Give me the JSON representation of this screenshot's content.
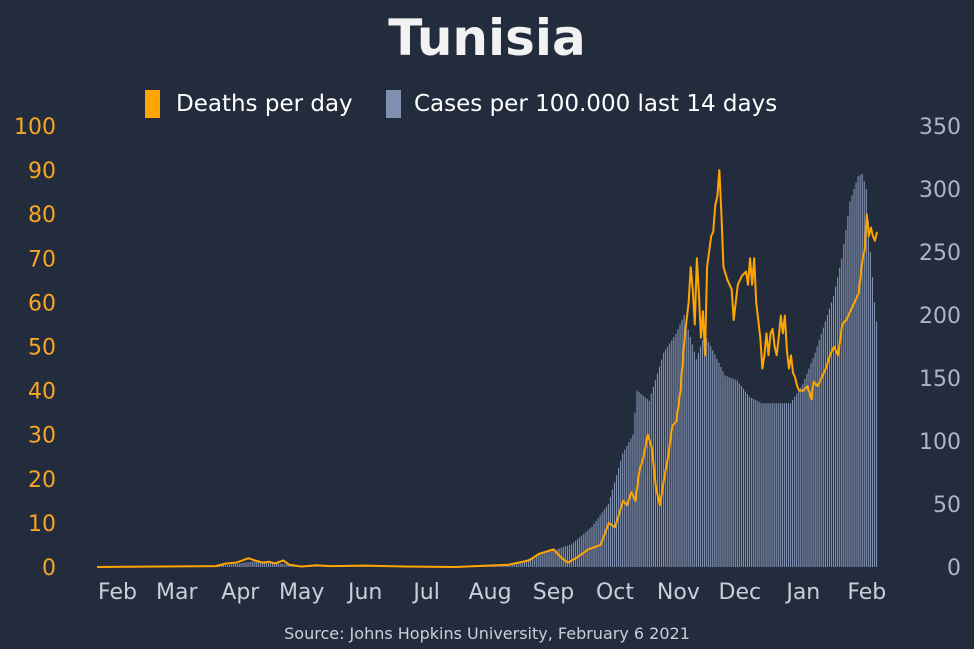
{
  "chart_data": {
    "type": "bar+line",
    "title": "Tunisia",
    "source": "Source: Johns Hopkins University, February 6 2021",
    "legend": [
      {
        "label": "Deaths per day",
        "color": "#ffa500",
        "kind": "line"
      },
      {
        "label": "Cases per 100.000 last 14 days",
        "color": "#8090b0",
        "kind": "bar"
      }
    ],
    "x_tick_labels": [
      "Feb",
      "Mar",
      "Apr",
      "May",
      "Jun",
      "Jul",
      "Aug",
      "Sep",
      "Oct",
      "Nov",
      "Dec",
      "Jan",
      "Feb"
    ],
    "y_left": {
      "min": 0,
      "max": 100,
      "ticks": [
        0,
        10,
        20,
        30,
        40,
        50,
        60,
        70,
        80,
        90,
        100
      ]
    },
    "y_right": {
      "min": 0,
      "max": 350,
      "ticks": [
        0,
        50,
        100,
        150,
        200,
        250,
        300,
        350
      ]
    },
    "series": [
      {
        "name": "Cases per 100.000 last 14 days",
        "axis": "right",
        "points": [
          [
            "2020-01-22",
            0
          ],
          [
            "2020-03-15",
            0.2
          ],
          [
            "2020-03-28",
            2
          ],
          [
            "2020-04-08",
            4.5
          ],
          [
            "2020-04-18",
            3.5
          ],
          [
            "2020-04-28",
            1
          ],
          [
            "2020-05-10",
            0.2
          ],
          [
            "2020-06-15",
            0.1
          ],
          [
            "2020-07-15",
            0.5
          ],
          [
            "2020-08-01",
            1
          ],
          [
            "2020-08-15",
            3
          ],
          [
            "2020-08-25",
            10
          ],
          [
            "2020-09-01",
            13
          ],
          [
            "2020-09-10",
            18
          ],
          [
            "2020-09-20",
            32
          ],
          [
            "2020-09-28",
            50
          ],
          [
            "2020-10-05",
            90
          ],
          [
            "2020-10-10",
            105
          ],
          [
            "2020-10-12",
            140
          ],
          [
            "2020-10-18",
            132
          ],
          [
            "2020-10-25",
            170
          ],
          [
            "2020-10-31",
            185
          ],
          [
            "2020-11-04",
            200
          ],
          [
            "2020-11-10",
            165
          ],
          [
            "2020-11-14",
            185
          ],
          [
            "2020-11-18",
            172
          ],
          [
            "2020-11-24",
            152
          ],
          [
            "2020-11-30",
            148
          ],
          [
            "2020-12-06",
            135
          ],
          [
            "2020-12-12",
            130
          ],
          [
            "2020-12-20",
            130
          ],
          [
            "2020-12-26",
            130
          ],
          [
            "2021-01-01",
            145
          ],
          [
            "2021-01-07",
            170
          ],
          [
            "2021-01-12",
            195
          ],
          [
            "2021-01-16",
            215
          ],
          [
            "2021-01-20",
            245
          ],
          [
            "2021-01-24",
            290
          ],
          [
            "2021-01-28",
            310
          ],
          [
            "2021-01-30",
            312
          ],
          [
            "2021-02-01",
            300
          ],
          [
            "2021-02-03",
            250
          ],
          [
            "2021-02-05",
            210
          ],
          [
            "2021-02-06",
            195
          ]
        ]
      },
      {
        "name": "Deaths per day",
        "axis": "left",
        "points": [
          [
            "2020-01-22",
            0
          ],
          [
            "2020-03-20",
            0.2
          ],
          [
            "2020-03-25",
            0.8
          ],
          [
            "2020-03-30",
            1
          ],
          [
            "2020-04-02",
            1.5
          ],
          [
            "2020-04-05",
            2
          ],
          [
            "2020-04-08",
            1.5
          ],
          [
            "2020-04-12",
            1
          ],
          [
            "2020-04-15",
            1.2
          ],
          [
            "2020-04-18",
            0.8
          ],
          [
            "2020-04-22",
            1.5
          ],
          [
            "2020-04-25",
            0.5
          ],
          [
            "2020-05-01",
            0.1
          ],
          [
            "2020-05-08",
            0.4
          ],
          [
            "2020-05-15",
            0.2
          ],
          [
            "2020-06-01",
            0.3
          ],
          [
            "2020-06-20",
            0.1
          ],
          [
            "2020-07-15",
            0
          ],
          [
            "2020-08-10",
            0.5
          ],
          [
            "2020-08-20",
            1.5
          ],
          [
            "2020-08-25",
            3
          ],
          [
            "2020-09-01",
            4
          ],
          [
            "2020-09-05",
            2
          ],
          [
            "2020-09-08",
            1
          ],
          [
            "2020-09-12",
            2
          ],
          [
            "2020-09-18",
            4
          ],
          [
            "2020-09-24",
            5
          ],
          [
            "2020-09-28",
            10
          ],
          [
            "2020-10-01",
            9
          ],
          [
            "2020-10-03",
            12
          ],
          [
            "2020-10-05",
            15
          ],
          [
            "2020-10-07",
            14
          ],
          [
            "2020-10-09",
            17
          ],
          [
            "2020-10-11",
            15
          ],
          [
            "2020-10-13",
            22
          ],
          [
            "2020-10-15",
            25
          ],
          [
            "2020-10-17",
            30
          ],
          [
            "2020-10-19",
            27
          ],
          [
            "2020-10-21",
            18
          ],
          [
            "2020-10-23",
            14
          ],
          [
            "2020-10-25",
            20
          ],
          [
            "2020-10-27",
            25
          ],
          [
            "2020-10-29",
            32
          ],
          [
            "2020-10-31",
            33
          ],
          [
            "2020-11-02",
            40
          ],
          [
            "2020-11-04",
            52
          ],
          [
            "2020-11-06",
            60
          ],
          [
            "2020-11-07",
            68
          ],
          [
            "2020-11-08",
            63
          ],
          [
            "2020-11-09",
            55
          ],
          [
            "2020-11-10",
            70
          ],
          [
            "2020-11-11",
            62
          ],
          [
            "2020-11-12",
            52
          ],
          [
            "2020-11-13",
            58
          ],
          [
            "2020-11-14",
            48
          ],
          [
            "2020-11-15",
            68
          ],
          [
            "2020-11-17",
            75
          ],
          [
            "2020-11-18",
            76
          ],
          [
            "2020-11-19",
            82
          ],
          [
            "2020-11-20",
            84
          ],
          [
            "2020-11-21",
            90
          ],
          [
            "2020-11-22",
            80
          ],
          [
            "2020-11-23",
            68
          ],
          [
            "2020-11-25",
            65
          ],
          [
            "2020-11-27",
            63
          ],
          [
            "2020-11-28",
            56
          ],
          [
            "2020-11-30",
            64
          ],
          [
            "2020-12-02",
            66
          ],
          [
            "2020-12-04",
            67
          ],
          [
            "2020-12-05",
            64
          ],
          [
            "2020-12-06",
            70
          ],
          [
            "2020-12-07",
            64
          ],
          [
            "2020-12-08",
            70
          ],
          [
            "2020-12-09",
            60
          ],
          [
            "2020-12-10",
            56
          ],
          [
            "2020-12-11",
            52
          ],
          [
            "2020-12-12",
            45
          ],
          [
            "2020-12-13",
            48
          ],
          [
            "2020-12-14",
            53
          ],
          [
            "2020-12-15",
            48
          ],
          [
            "2020-12-16",
            53
          ],
          [
            "2020-12-17",
            54
          ],
          [
            "2020-12-18",
            50
          ],
          [
            "2020-12-19",
            48
          ],
          [
            "2020-12-20",
            52
          ],
          [
            "2020-12-21",
            57
          ],
          [
            "2020-12-22",
            53
          ],
          [
            "2020-12-23",
            57
          ],
          [
            "2020-12-24",
            49
          ],
          [
            "2020-12-25",
            45
          ],
          [
            "2020-12-26",
            48
          ],
          [
            "2020-12-27",
            44
          ],
          [
            "2020-12-28",
            43
          ],
          [
            "2020-12-29",
            41
          ],
          [
            "2020-12-30",
            40
          ],
          [
            "2021-01-01",
            40
          ],
          [
            "2021-01-03",
            41
          ],
          [
            "2021-01-05",
            38
          ],
          [
            "2021-01-06",
            42
          ],
          [
            "2021-01-08",
            41
          ],
          [
            "2021-01-10",
            43
          ],
          [
            "2021-01-12",
            45
          ],
          [
            "2021-01-14",
            48
          ],
          [
            "2021-01-16",
            50
          ],
          [
            "2021-01-18",
            48
          ],
          [
            "2021-01-20",
            55
          ],
          [
            "2021-01-22",
            56
          ],
          [
            "2021-01-24",
            58
          ],
          [
            "2021-01-26",
            60
          ],
          [
            "2021-01-28",
            62
          ],
          [
            "2021-01-29",
            66
          ],
          [
            "2021-01-30",
            70
          ],
          [
            "2021-01-31",
            72
          ],
          [
            "2021-02-01",
            80
          ],
          [
            "2021-02-02",
            75
          ],
          [
            "2021-02-03",
            77
          ],
          [
            "2021-02-04",
            75
          ],
          [
            "2021-02-05",
            74
          ],
          [
            "2021-02-06",
            76
          ]
        ]
      }
    ]
  }
}
